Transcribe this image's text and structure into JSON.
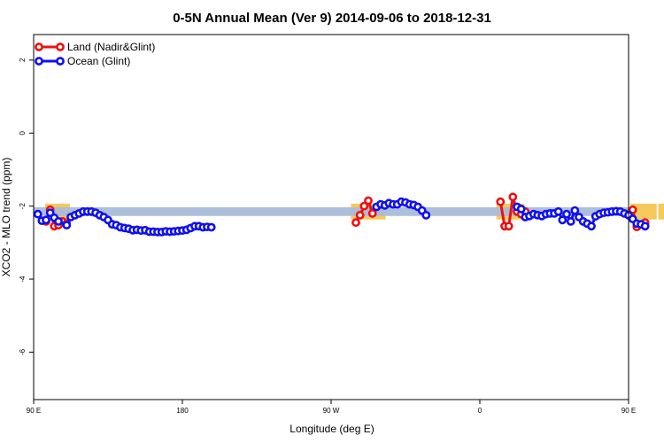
{
  "chart_data": {
    "type": "line",
    "title": "0-5N Annual Mean (Ver 9)   2014-09-06 to 2018-12-31",
    "xlabel": "Longitude (deg E)",
    "ylabel": "XCO2 - MLO trend (ppm)",
    "xlim": [
      90,
      450
    ],
    "ylim": [
      -7.3,
      2.7
    ],
    "x_ticks": [
      {
        "value": 90,
        "label": "90 E"
      },
      {
        "value": 180,
        "label": "180"
      },
      {
        "value": 270,
        "label": "90 W"
      },
      {
        "value": 360,
        "label": "0"
      },
      {
        "value": 450,
        "label": "90 E"
      },
      {
        "value": 540,
        "label": "180"
      }
    ],
    "y_ticks": [
      2,
      0,
      -2,
      -4,
      -6
    ],
    "legend_position": "top-left",
    "band": {
      "center": -2.15,
      "half_width": 0.12,
      "color": "#a9bcd8"
    },
    "land_regions": [
      {
        "x_start": 97,
        "x_end": 112
      },
      {
        "x_start": 282,
        "x_end": 303
      },
      {
        "x_start": 370,
        "x_end": 387
      },
      {
        "x_start": 451,
        "x_end": 467
      },
      {
        "x_start": 468,
        "x_end": 472
      }
    ],
    "land_region_color": "#f5c95c",
    "series": [
      {
        "name": "Land (Nadir&Glint)",
        "color": "#ee1111",
        "points": [
          [
            97.5,
            -2.42
          ],
          [
            100,
            -2.1
          ],
          [
            102.5,
            -2.55
          ],
          [
            105,
            -2.52
          ],
          [
            107.5,
            -2.42
          ],
          [
            110,
            -2.48
          ],
          [
            285,
            -2.45
          ],
          [
            287.5,
            -2.25
          ],
          [
            290,
            -2.0
          ],
          [
            292.5,
            -1.85
          ],
          [
            295,
            -2.2
          ],
          [
            372.5,
            -1.88
          ],
          [
            375,
            -2.55
          ],
          [
            377.5,
            -2.55
          ],
          [
            380,
            -1.75
          ],
          [
            382.5,
            -2.15
          ],
          [
            385,
            -2.22
          ],
          [
            387.5,
            -2.15
          ],
          [
            452.5,
            -2.1
          ],
          [
            455,
            -2.57
          ],
          [
            457.5,
            -2.5
          ],
          [
            460,
            -2.45
          ]
        ]
      },
      {
        "name": "Ocean (Glint)",
        "color": "#1010ee",
        "points": [
          [
            92.5,
            -2.22
          ],
          [
            95,
            -2.4
          ],
          [
            97.5,
            -2.38
          ],
          [
            100,
            -2.18
          ],
          [
            102.5,
            -2.32
          ],
          [
            105,
            -2.42
          ],
          [
            110,
            -2.52
          ],
          [
            112.5,
            -2.3
          ],
          [
            115,
            -2.25
          ],
          [
            117.5,
            -2.2
          ],
          [
            120,
            -2.15
          ],
          [
            122.5,
            -2.15
          ],
          [
            125,
            -2.15
          ],
          [
            127.5,
            -2.18
          ],
          [
            130,
            -2.25
          ],
          [
            132.5,
            -2.3
          ],
          [
            135,
            -2.38
          ],
          [
            137.5,
            -2.5
          ],
          [
            140,
            -2.52
          ],
          [
            142.5,
            -2.58
          ],
          [
            145,
            -2.6
          ],
          [
            147.5,
            -2.62
          ],
          [
            150,
            -2.66
          ],
          [
            152.5,
            -2.65
          ],
          [
            155,
            -2.67
          ],
          [
            157.5,
            -2.66
          ],
          [
            160,
            -2.7
          ],
          [
            162.5,
            -2.7
          ],
          [
            165,
            -2.71
          ],
          [
            167.5,
            -2.71
          ],
          [
            170,
            -2.69
          ],
          [
            172.5,
            -2.7
          ],
          [
            175,
            -2.69
          ],
          [
            177.5,
            -2.68
          ],
          [
            180,
            -2.67
          ],
          [
            182.5,
            -2.65
          ],
          [
            185,
            -2.6
          ],
          [
            187.5,
            -2.55
          ],
          [
            190,
            -2.55
          ],
          [
            192.5,
            -2.58
          ],
          [
            195,
            -2.57
          ],
          [
            197.5,
            -2.58
          ],
          [
            297.5,
            -2.02
          ],
          [
            300,
            -1.95
          ],
          [
            302.5,
            -1.98
          ],
          [
            305,
            -1.92
          ],
          [
            307.5,
            -1.95
          ],
          [
            310,
            -1.95
          ],
          [
            312.5,
            -1.88
          ],
          [
            315,
            -1.9
          ],
          [
            317.5,
            -1.95
          ],
          [
            320,
            -1.97
          ],
          [
            322.5,
            -2.02
          ],
          [
            325,
            -2.12
          ],
          [
            327.5,
            -2.25
          ],
          [
            382.5,
            -2.02
          ],
          [
            385,
            -2.08
          ],
          [
            387.5,
            -2.3
          ],
          [
            390,
            -2.27
          ],
          [
            392.5,
            -2.22
          ],
          [
            395,
            -2.25
          ],
          [
            397.5,
            -2.27
          ],
          [
            400,
            -2.22
          ],
          [
            402.5,
            -2.2
          ],
          [
            405,
            -2.2
          ],
          [
            407.5,
            -2.15
          ],
          [
            410,
            -2.38
          ],
          [
            412.5,
            -2.22
          ],
          [
            415,
            -2.42
          ],
          [
            417.5,
            -2.12
          ],
          [
            420,
            -2.3
          ],
          [
            422.5,
            -2.42
          ],
          [
            425,
            -2.48
          ],
          [
            427.5,
            -2.55
          ],
          [
            430,
            -2.28
          ],
          [
            432.5,
            -2.22
          ],
          [
            435,
            -2.18
          ],
          [
            437.5,
            -2.17
          ],
          [
            440,
            -2.15
          ],
          [
            442.5,
            -2.14
          ],
          [
            445,
            -2.15
          ],
          [
            447.5,
            -2.2
          ],
          [
            450,
            -2.25
          ],
          [
            452.5,
            -2.35
          ],
          [
            455,
            -2.48
          ],
          [
            457.5,
            -2.5
          ],
          [
            460,
            -2.55
          ]
        ]
      }
    ]
  }
}
